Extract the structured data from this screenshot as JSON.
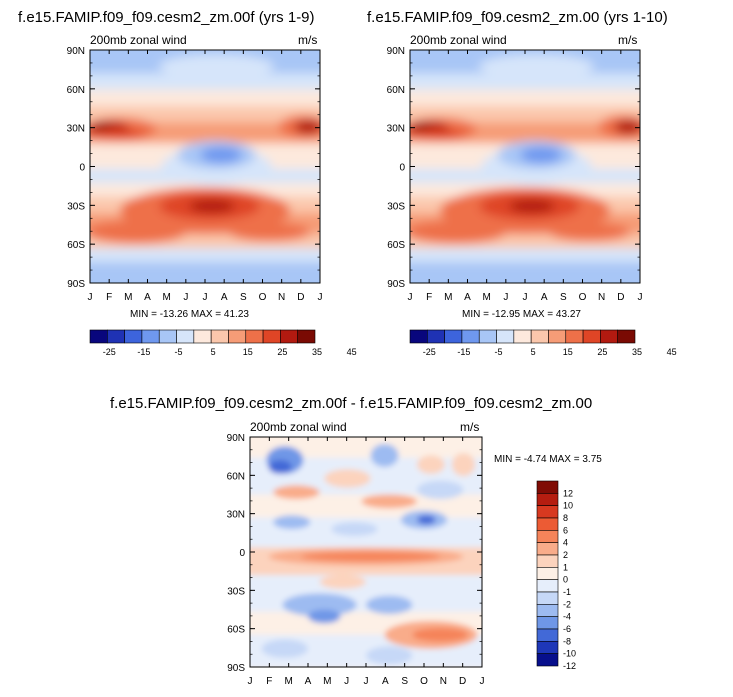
{
  "page": {
    "left_title": "f.e15.FAMIP.f09_f09.cesm2_zm.00f (yrs 1-9)",
    "right_title": "f.e15.FAMIP.f09_f09.cesm2_zm.00 (yrs 1-10)",
    "diff_title": "f.e15.FAMIP.f09_f09.cesm2_zm.00f - f.e15.FAMIP.f09_f09.cesm2_zm.00"
  },
  "chart_data": [
    {
      "type": "heatmap",
      "title": "f.e15.FAMIP.f09_f09.cesm2_zm.00f (yrs 1-9)",
      "left_label": "200mb zonal wind",
      "right_label": "m/s",
      "x_ticks": [
        "J",
        "F",
        "M",
        "A",
        "M",
        "J",
        "J",
        "A",
        "S",
        "O",
        "N",
        "D",
        "J"
      ],
      "y_ticks": [
        "90N",
        "60N",
        "30N",
        "0",
        "30S",
        "60S",
        "90S"
      ],
      "min": -13.26,
      "max": 41.23,
      "minmax_text": "MIN = -13.26 MAX =  41.23",
      "colorbar_levels": [
        -25,
        -15,
        -5,
        5,
        15,
        25,
        35,
        45
      ],
      "colorbar_labels": [
        "-25",
        "-15",
        "-5",
        "5",
        "15",
        "25",
        "35",
        "45"
      ]
    },
    {
      "type": "heatmap",
      "title": "f.e15.FAMIP.f09_f09.cesm2_zm.00 (yrs 1-10)",
      "left_label": "200mb zonal wind",
      "right_label": "m/s",
      "x_ticks": [
        "J",
        "F",
        "M",
        "A",
        "M",
        "J",
        "J",
        "A",
        "S",
        "O",
        "N",
        "D",
        "J"
      ],
      "y_ticks": [
        "90N",
        "60N",
        "30N",
        "0",
        "30S",
        "60S",
        "90S"
      ],
      "min": -12.95,
      "max": 43.27,
      "minmax_text": "MIN = -12.95 MAX =  43.27",
      "colorbar_levels": [
        -25,
        -15,
        -5,
        5,
        15,
        25,
        35,
        45
      ],
      "colorbar_labels": [
        "-25",
        "-15",
        "-5",
        "5",
        "15",
        "25",
        "35",
        "45"
      ]
    },
    {
      "type": "heatmap",
      "title": "f.e15.FAMIP.f09_f09.cesm2_zm.00f - f.e15.FAMIP.f09_f09.cesm2_zm.00",
      "left_label": "200mb zonal wind",
      "right_label": "m/s",
      "x_ticks": [
        "J",
        "F",
        "M",
        "A",
        "M",
        "J",
        "J",
        "A",
        "S",
        "O",
        "N",
        "D",
        "J"
      ],
      "y_ticks": [
        "90N",
        "60N",
        "30N",
        "0",
        "30S",
        "60S",
        "90S"
      ],
      "min": -4.74,
      "max": 3.75,
      "minmax_text": "MIN =  -4.74 MAX =   3.75",
      "colorbar_labels": [
        "12",
        "10",
        "8",
        "6",
        "4",
        "2",
        "1",
        "0",
        "-1",
        "-2",
        "-4",
        "-6",
        "-8",
        "-10",
        "-12"
      ]
    }
  ],
  "colors": {
    "abs": [
      "#08067d",
      "#1f32b4",
      "#3d64dc",
      "#6f98ef",
      "#a8c6f6",
      "#d6e5fa",
      "#fde9dd",
      "#fbc7ac",
      "#f69c77",
      "#ee7049",
      "#df4526",
      "#b21a10",
      "#7a0a03"
    ],
    "diff": [
      "#800c05",
      "#b51d10",
      "#d73920",
      "#ec5b34",
      "#f5845a",
      "#f9ac8a",
      "#fcd3bd",
      "#fdf0e6",
      "#e6eefb",
      "#c6d8f7",
      "#9dbbf1",
      "#6f97e7",
      "#4269d7",
      "#1e37b8",
      "#070f8c"
    ]
  }
}
